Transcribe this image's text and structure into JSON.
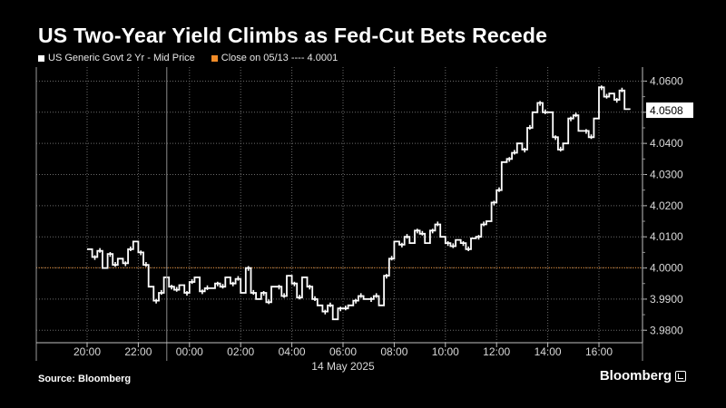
{
  "header": {
    "title": "US Two-Year Yield Climbs as Fed-Cut Bets Recede"
  },
  "legend": {
    "series_label": "US Generic Govt 2 Yr - Mid Price",
    "series_color": "#ffffff",
    "ref_label": "Close on 05/13 ---- 4.0001",
    "ref_color": "#f28c28"
  },
  "footer": {
    "source": "Source: Bloomberg",
    "brand": "Bloomberg"
  },
  "chart_data": {
    "type": "line",
    "title": "US Two-Year Yield Climbs as Fed-Cut Bets Recede",
    "date_label": "14 May 2025",
    "x_ticks": [
      "20:00",
      "22:00",
      "00:00",
      "02:00",
      "04:00",
      "06:00",
      "08:00",
      "10:00",
      "12:00",
      "14:00",
      "16:00"
    ],
    "y_ticks": [
      "3.9800",
      "3.9900",
      "4.0000",
      "4.0100",
      "4.0200",
      "4.0300",
      "4.0400",
      "4.0500",
      "4.0600"
    ],
    "ylim": [
      3.976,
      4.0645
    ],
    "grid": true,
    "reference_line": {
      "label": "Close on 05/13",
      "value": 4.0001
    },
    "last_value_label": "4.0508",
    "series": [
      {
        "name": "US Generic Govt 2 Yr - Mid Price",
        "x_hours": [
          0.0,
          0.2,
          0.4,
          0.6,
          0.8,
          1.0,
          1.2,
          1.4,
          1.6,
          1.8,
          2.0,
          2.2,
          2.4,
          2.6,
          2.8,
          3.0,
          3.2,
          3.4,
          3.6,
          3.8,
          4.0,
          4.2,
          4.4,
          4.6,
          4.8,
          5.0,
          5.2,
          5.4,
          5.6,
          5.8,
          6.0,
          6.2,
          6.4,
          6.6,
          6.8,
          7.0,
          7.2,
          7.4,
          7.6,
          7.8,
          8.0,
          8.2,
          8.4,
          8.6,
          8.8,
          9.0,
          9.2,
          9.4,
          9.6,
          9.8,
          10.0,
          10.2,
          10.4,
          10.6,
          10.8,
          11.0,
          11.2,
          11.4,
          11.6,
          11.8,
          12.0,
          12.2,
          12.4,
          12.6,
          12.8,
          13.0,
          13.2,
          13.4,
          13.6,
          13.8,
          14.0,
          14.2,
          14.4,
          14.6,
          14.8,
          15.0,
          15.2,
          15.4,
          15.6,
          15.8,
          16.0,
          16.2,
          16.4,
          16.6,
          16.8,
          17.0,
          17.2,
          17.4,
          17.6,
          17.8,
          18.0,
          18.2,
          18.4,
          18.6,
          18.8,
          19.0,
          19.2,
          19.4,
          19.6,
          19.8,
          20.0,
          20.2,
          20.4,
          20.6,
          20.8,
          21.0,
          21.2
        ],
        "values": [
          4.006,
          4.0035,
          4.0055,
          4.0,
          4.0045,
          4.001,
          4.003,
          4.0015,
          4.006,
          4.0085,
          4.005,
          4.001,
          3.994,
          3.9895,
          3.992,
          3.997,
          3.994,
          3.993,
          3.9945,
          3.992,
          3.9955,
          3.997,
          3.9925,
          3.9935,
          3.9935,
          3.995,
          3.994,
          3.997,
          3.995,
          3.9965,
          3.992,
          4.0,
          3.992,
          3.99,
          3.992,
          3.989,
          3.994,
          3.994,
          3.991,
          3.9975,
          3.995,
          3.9905,
          3.997,
          3.994,
          3.99,
          3.988,
          3.986,
          3.988,
          3.9835,
          3.987,
          3.987,
          3.988,
          3.9895,
          3.991,
          3.99,
          3.99,
          3.991,
          3.988,
          3.9975,
          4.003,
          4.0085,
          4.0075,
          4.01,
          4.008,
          4.012,
          4.011,
          4.008,
          4.012,
          4.014,
          4.01,
          4.008,
          4.007,
          4.009,
          4.008,
          4.006,
          4.0095,
          4.01,
          4.014,
          4.015,
          4.021,
          4.025,
          4.034,
          4.035,
          4.037,
          4.04,
          4.038,
          4.045,
          4.05,
          4.053,
          4.05,
          4.05,
          4.042,
          4.038,
          4.04,
          4.048,
          4.049,
          4.044,
          4.044,
          4.042,
          4.048,
          4.058,
          4.055,
          4.056,
          4.054,
          4.057,
          4.051,
          4.0508
        ]
      }
    ]
  }
}
